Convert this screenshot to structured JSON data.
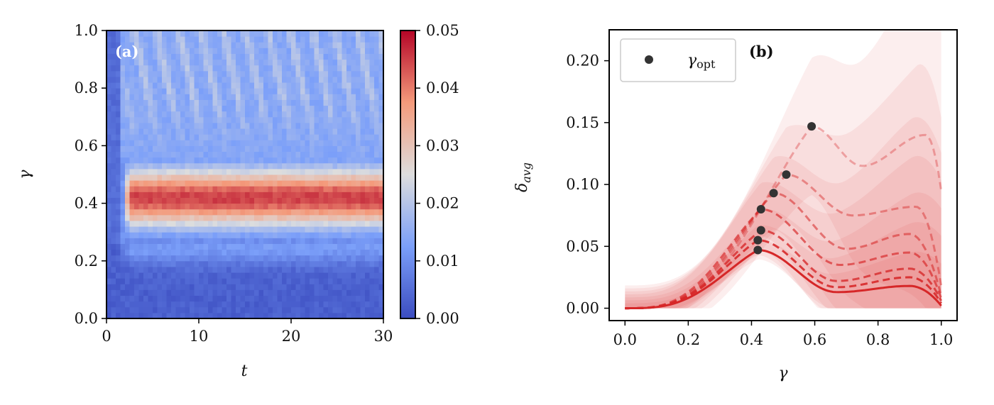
{
  "chart_data": [
    {
      "type": "heatmap",
      "panel_label": "(a)",
      "xlabel": "t",
      "ylabel": "γ",
      "xlim": [
        0,
        30
      ],
      "ylim": [
        0,
        1.0
      ],
      "xticks": [
        "0",
        "10",
        "20",
        "30"
      ],
      "yticks": [
        "0.0",
        "0.2",
        "0.4",
        "0.6",
        "0.8",
        "1.0"
      ],
      "colorbar": {
        "ticks": [
          "0.00",
          "0.01",
          "0.02",
          "0.03",
          "0.04",
          "0.05"
        ],
        "range": [
          0,
          0.05
        ],
        "colormap": "coolwarm"
      },
      "features": {
        "band_gamma_range": [
          0.27,
          0.55
        ],
        "band_peak_value": 0.05,
        "band_start_t": 2.0,
        "oscillation_gamma_range": [
          0.6,
          1.0
        ]
      }
    },
    {
      "type": "line",
      "panel_label": "(b)",
      "xlabel": "γ",
      "ylabel": "δ_avg",
      "xlim": [
        -0.05,
        1.05
      ],
      "ylim": [
        -0.01,
        0.225
      ],
      "xticks": [
        "0.0",
        "0.2",
        "0.4",
        "0.6",
        "0.8",
        "1.0"
      ],
      "yticks": [
        "0.00",
        "0.05",
        "0.10",
        "0.15",
        "0.20"
      ],
      "legend": {
        "label": "γ",
        "subscript": "opt",
        "placement": "top-left"
      },
      "gamma_opt_points": [
        {
          "x": 0.42,
          "y": 0.047
        },
        {
          "x": 0.42,
          "y": 0.055
        },
        {
          "x": 0.43,
          "y": 0.063
        },
        {
          "x": 0.43,
          "y": 0.08
        },
        {
          "x": 0.47,
          "y": 0.093
        },
        {
          "x": 0.51,
          "y": 0.108
        },
        {
          "x": 0.59,
          "y": 0.147
        }
      ],
      "series": [
        {
          "peak_x": 0.42,
          "peak_y": 0.047,
          "dip_x": 0.67,
          "dip_y": 0.013,
          "hump_x": 0.9,
          "hump_y": 0.018,
          "end_y": 0.002,
          "style": "solid"
        },
        {
          "peak_x": 0.42,
          "peak_y": 0.055,
          "dip_x": 0.67,
          "dip_y": 0.017,
          "hump_x": 0.9,
          "hump_y": 0.025,
          "end_y": 0.004,
          "style": "dashed"
        },
        {
          "peak_x": 0.43,
          "peak_y": 0.063,
          "dip_x": 0.67,
          "dip_y": 0.022,
          "hump_x": 0.9,
          "hump_y": 0.032,
          "end_y": 0.006,
          "style": "dashed"
        },
        {
          "peak_x": 0.43,
          "peak_y": 0.08,
          "dip_x": 0.68,
          "dip_y": 0.035,
          "hump_x": 0.9,
          "hump_y": 0.045,
          "end_y": 0.008,
          "style": "dashed"
        },
        {
          "peak_x": 0.47,
          "peak_y": 0.093,
          "dip_x": 0.7,
          "dip_y": 0.048,
          "hump_x": 0.9,
          "hump_y": 0.06,
          "end_y": 0.01,
          "style": "dashed"
        },
        {
          "peak_x": 0.51,
          "peak_y": 0.108,
          "dip_x": 0.72,
          "dip_y": 0.075,
          "hump_x": 0.92,
          "hump_y": 0.082,
          "end_y": 0.018,
          "style": "dashed"
        },
        {
          "peak_x": 0.59,
          "peak_y": 0.147,
          "dip_x": 0.75,
          "dip_y": 0.115,
          "hump_x": 0.95,
          "hump_y": 0.14,
          "end_y": 0.095,
          "style": "dashed"
        }
      ],
      "colors": {
        "line": "#d62728",
        "points": "#333333"
      }
    }
  ]
}
